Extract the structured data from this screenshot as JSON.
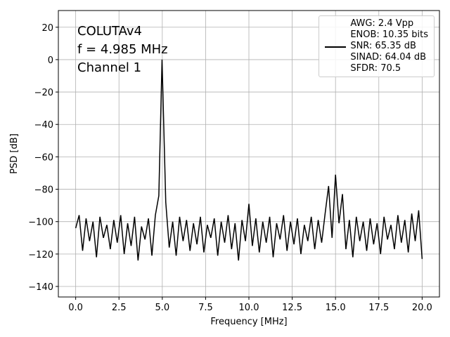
{
  "chart_data": {
    "type": "line",
    "annotations": [
      "COLUTAv4",
      "f = 4.985 MHz",
      "Channel 1"
    ],
    "x_label": "Frequency [MHz]",
    "y_label": "PSD [dB]",
    "x": [
      0,
      0.2,
      0.4,
      0.6,
      0.8,
      1.0,
      1.2,
      1.4,
      1.6,
      1.8,
      2.0,
      2.2,
      2.4,
      2.6,
      2.8,
      3.0,
      3.2,
      3.4,
      3.6,
      3.8,
      4.0,
      4.2,
      4.4,
      4.6,
      4.8,
      4.985,
      5.2,
      5.4,
      5.6,
      5.8,
      6.0,
      6.2,
      6.4,
      6.6,
      6.8,
      7.0,
      7.2,
      7.4,
      7.6,
      7.8,
      8.0,
      8.2,
      8.4,
      8.6,
      8.8,
      9.0,
      9.2,
      9.4,
      9.6,
      9.8,
      10.0,
      10.2,
      10.4,
      10.6,
      10.8,
      11.0,
      11.2,
      11.4,
      11.6,
      11.8,
      12.0,
      12.2,
      12.4,
      12.6,
      12.8,
      13.0,
      13.2,
      13.4,
      13.6,
      13.8,
      14.0,
      14.2,
      14.4,
      14.6,
      14.8,
      15.0,
      15.2,
      15.4,
      15.6,
      15.8,
      16.0,
      16.2,
      16.4,
      16.6,
      16.8,
      17.0,
      17.2,
      17.4,
      17.6,
      17.8,
      18.0,
      18.2,
      18.4,
      18.6,
      18.8,
      19.0,
      19.2,
      19.4,
      19.6,
      19.8,
      20.0
    ],
    "series": [
      {
        "name": "AWG: 2.4 Vpp\nENOB: 10.35 bits\nSNR: 65.35 dB\nSINAD: 64.04 dB\nSFDR: 70.5",
        "color": "#000000",
        "values": [
          -104,
          -96,
          -118,
          -98,
          -112,
          -100,
          -122,
          -97,
          -110,
          -102,
          -117,
          -99,
          -113,
          -96,
          -120,
          -101,
          -115,
          -97,
          -124,
          -103,
          -111,
          -98,
          -121,
          -96,
          -84,
          0,
          -88,
          -116,
          -100,
          -121,
          -97,
          -112,
          -99,
          -118,
          -101,
          -114,
          -97,
          -119,
          -102,
          -110,
          -98,
          -121,
          -100,
          -113,
          -96,
          -117,
          -101,
          -124,
          -99,
          -112,
          -89,
          -115,
          -98,
          -119,
          -100,
          -113,
          -97,
          -122,
          -101,
          -111,
          -96,
          -118,
          -100,
          -114,
          -98,
          -120,
          -102,
          -112,
          -97,
          -117,
          -99,
          -113,
          -95,
          -78,
          -110,
          -71,
          -101,
          -83,
          -117,
          -99,
          -122,
          -97,
          -112,
          -100,
          -118,
          -98,
          -114,
          -101,
          -120,
          -97,
          -111,
          -102,
          -117,
          -96,
          -113,
          -99,
          -119,
          -95,
          -112,
          -93,
          -123
        ]
      }
    ],
    "xlim": [
      -1,
      21
    ],
    "ylim": [
      -146.5,
      30.3
    ],
    "xticks": [
      {
        "value": 0,
        "label": "0.0"
      },
      2.5,
      {
        "value": 5,
        "label": "5.0"
      },
      7.5,
      {
        "value": 10,
        "label": "10.0"
      },
      12.5,
      {
        "value": 15,
        "label": "15.0"
      },
      17.5,
      {
        "value": 20,
        "label": "20.0"
      }
    ],
    "yticks": [
      20,
      0,
      {
        "value": -20,
        "label": "−20"
      },
      {
        "value": -40,
        "label": "−40"
      },
      {
        "value": -60,
        "label": "−60"
      },
      {
        "value": -80,
        "label": "−80"
      },
      {
        "value": -100,
        "label": "−100"
      },
      {
        "value": -120,
        "label": "−120"
      },
      {
        "value": -140,
        "label": "−140"
      }
    ],
    "grid": true,
    "legend": "upper right"
  }
}
